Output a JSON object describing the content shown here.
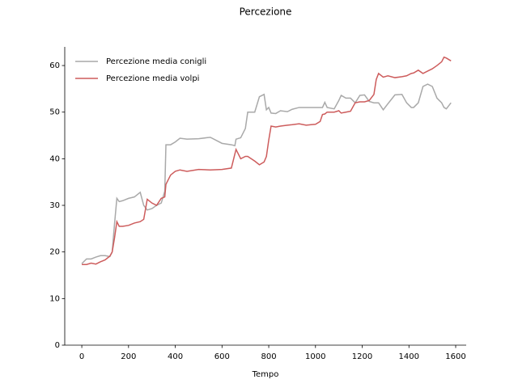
{
  "chart_data": {
    "type": "line",
    "title": "Percezione",
    "x_label": "Tempo",
    "x": [
      0,
      20,
      40,
      60,
      80,
      100,
      120,
      130,
      140,
      150,
      160,
      175,
      200,
      225,
      250,
      265,
      280,
      300,
      320,
      340,
      355,
      360,
      380,
      400,
      420,
      450,
      500,
      550,
      600,
      640,
      655,
      660,
      680,
      700,
      710,
      740,
      760,
      780,
      790,
      800,
      810,
      830,
      850,
      880,
      900,
      930,
      960,
      980,
      1000,
      1020,
      1030,
      1040,
      1050,
      1080,
      1100,
      1110,
      1130,
      1150,
      1170,
      1190,
      1210,
      1230,
      1250,
      1260,
      1270,
      1290,
      1310,
      1340,
      1370,
      1390,
      1410,
      1420,
      1440,
      1460,
      1480,
      1500,
      1520,
      1540,
      1550,
      1560,
      1580
    ],
    "series": [
      {
        "name": "Percezione media conigli",
        "color": "#a9a9a9",
        "values": [
          17.5,
          18.5,
          18.5,
          18.9,
          19.2,
          19.2,
          19,
          20,
          26,
          31.5,
          30.8,
          31,
          31.5,
          31.8,
          32.8,
          30,
          29,
          29.3,
          30,
          30.5,
          33,
          43,
          43,
          43.6,
          44.4,
          44.2,
          44.3,
          44.6,
          43.3,
          43,
          42.8,
          44.2,
          44.5,
          46.5,
          50,
          50,
          53.3,
          53.8,
          50.5,
          51,
          49.8,
          49.7,
          50.3,
          50.1,
          50.6,
          51,
          51,
          51,
          51,
          51,
          51,
          52.1,
          51,
          50.7,
          52.5,
          53.6,
          53,
          53,
          52,
          53.6,
          53.7,
          52.3,
          52,
          52,
          52,
          50.5,
          51.8,
          53.7,
          53.8,
          52,
          51,
          51,
          52,
          55.5,
          56,
          55.5,
          53,
          52,
          51,
          50.7,
          52
        ]
      },
      {
        "name": "Percezione media volpi",
        "color": "#cd5c5c",
        "values": [
          17.3,
          17.3,
          17.6,
          17.4,
          17.9,
          18.3,
          19.1,
          20,
          23,
          26.5,
          25.5,
          25.5,
          25.7,
          26.2,
          26.5,
          27,
          31.3,
          30.5,
          30,
          31.5,
          31.8,
          34.5,
          36.5,
          37.3,
          37.6,
          37.3,
          37.7,
          37.6,
          37.7,
          38,
          41,
          42,
          40,
          40.5,
          40.5,
          39.5,
          38.7,
          39.3,
          40.5,
          44,
          47,
          46.8,
          47,
          47.2,
          47.3,
          47.5,
          47.2,
          47.3,
          47.4,
          48,
          49.5,
          49.6,
          50,
          50,
          50.3,
          49.8,
          50,
          50.2,
          52,
          52.2,
          52.2,
          52.5,
          53.8,
          57,
          58.3,
          57.5,
          57.8,
          57.4,
          57.6,
          57.8,
          58.3,
          58.4,
          59,
          58.3,
          58.8,
          59.3,
          60,
          60.8,
          61.8,
          61.6,
          61
        ]
      }
    ],
    "xlim": [
      -73,
      1645
    ],
    "ylim": [
      0,
      64
    ],
    "xticks": [
      0,
      200,
      400,
      600,
      800,
      1000,
      1200,
      1400,
      1600
    ],
    "yticks": [
      0,
      10,
      20,
      30,
      40,
      50,
      60
    ],
    "legend": "upper left"
  }
}
